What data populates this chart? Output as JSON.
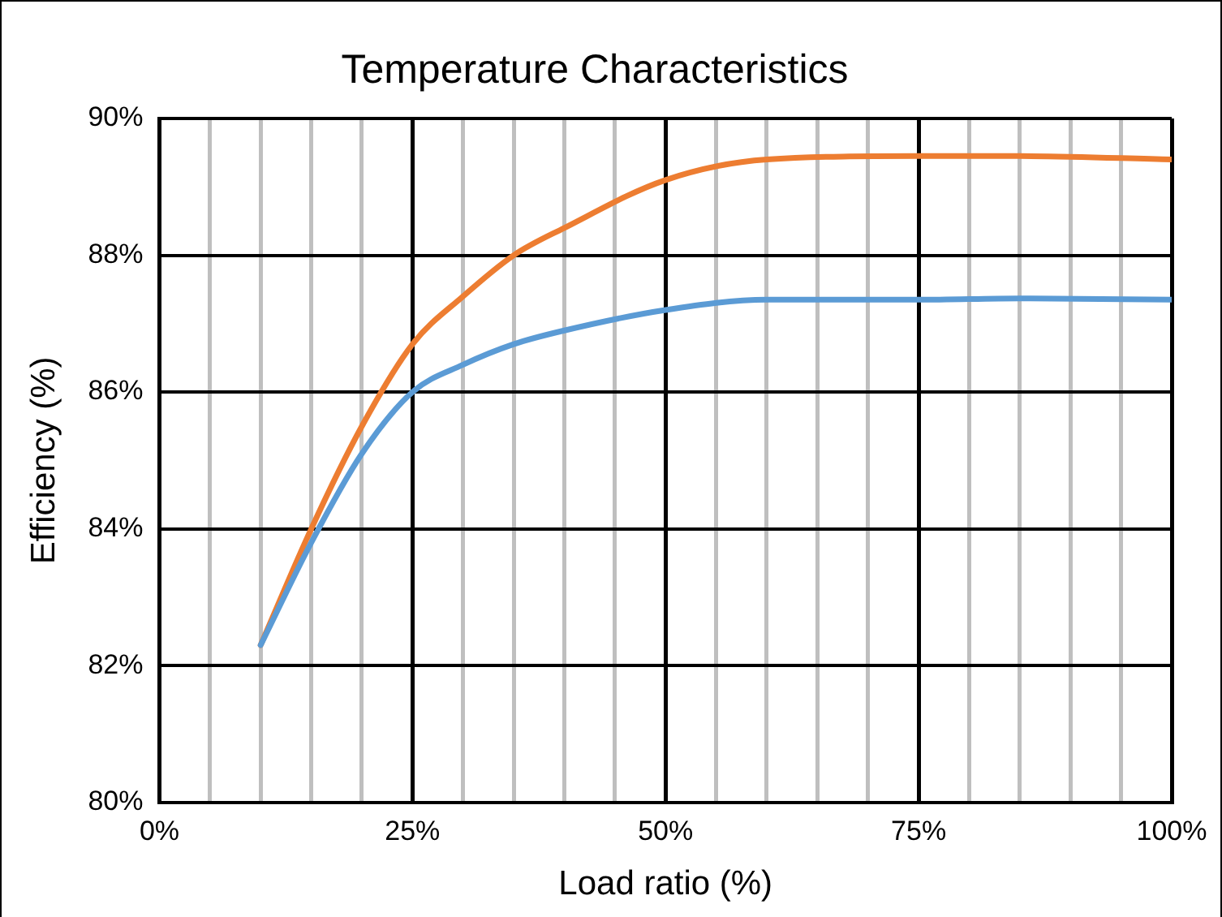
{
  "chart_data": {
    "type": "line",
    "title": "Temperature Characteristics",
    "xlabel": "Load ratio (%)",
    "ylabel": "Efficiency (%)",
    "x": [
      10,
      15,
      20,
      25,
      30,
      35,
      40,
      50,
      60,
      75,
      85,
      100
    ],
    "series": [
      {
        "color": "#5b9bd5",
        "values": [
          82.3,
          83.8,
          85.1,
          86.0,
          86.4,
          86.7,
          86.9,
          87.2,
          87.35,
          87.35,
          87.37,
          87.35
        ]
      },
      {
        "color": "#ed7d31",
        "values": [
          82.3,
          84.0,
          85.5,
          86.7,
          87.4,
          88.0,
          88.4,
          89.1,
          89.4,
          89.45,
          89.45,
          89.4
        ]
      }
    ],
    "xlim": [
      0,
      100
    ],
    "ylim": [
      80,
      90
    ],
    "xticks": [
      {
        "value": 0,
        "label": "0%"
      },
      {
        "value": 5,
        "label": null
      },
      {
        "value": 10,
        "label": null
      },
      {
        "value": 15,
        "label": null
      },
      {
        "value": 20,
        "label": null
      },
      {
        "value": 25,
        "label": "25%"
      },
      {
        "value": 30,
        "label": null
      },
      {
        "value": 35,
        "label": null
      },
      {
        "value": 40,
        "label": null
      },
      {
        "value": 45,
        "label": null
      },
      {
        "value": 50,
        "label": "50%"
      },
      {
        "value": 55,
        "label": null
      },
      {
        "value": 60,
        "label": null
      },
      {
        "value": 65,
        "label": null
      },
      {
        "value": 70,
        "label": null
      },
      {
        "value": 75,
        "label": "75%"
      },
      {
        "value": 80,
        "label": null
      },
      {
        "value": 85,
        "label": null
      },
      {
        "value": 90,
        "label": null
      },
      {
        "value": 95,
        "label": null
      },
      {
        "value": 100,
        "label": "100%"
      }
    ],
    "yticks": [
      {
        "value": 80,
        "label": "80%"
      },
      {
        "value": 82,
        "label": "82%"
      },
      {
        "value": 84,
        "label": "84%"
      },
      {
        "value": 86,
        "label": "86%"
      },
      {
        "value": 88,
        "label": "88%"
      },
      {
        "value": 90,
        "label": "90%"
      }
    ],
    "grid": true,
    "legend": false,
    "marker": "none",
    "line_style": "solid"
  }
}
